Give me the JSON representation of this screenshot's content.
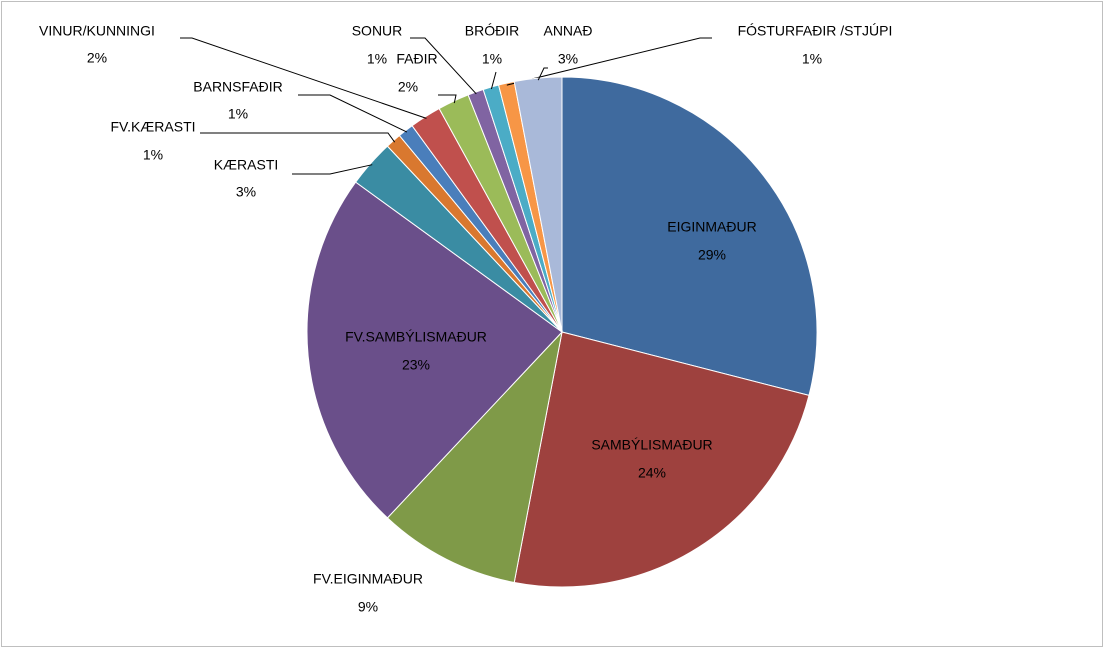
{
  "chart_data": {
    "type": "pie",
    "categories": [
      "EIGINMAÐUR",
      "SAMBÝLISMAÐUR",
      "FV.EIGINMAÐUR",
      "FV.SAMBÝLISMAÐUR",
      "KÆRASTI",
      "FV.KÆRASTI",
      "BARNSFAÐIR",
      "VINUR/KUNNINGI",
      "FAÐIR",
      "SONUR",
      "BRÓÐIR",
      "FÓSTURFAÐIR /STJÚPI",
      "ANNAÐ"
    ],
    "values": [
      29,
      24,
      9,
      23,
      3,
      1,
      1,
      2,
      2,
      1,
      1,
      1,
      3
    ],
    "value_labels": [
      "29%",
      "24%",
      "9%",
      "23%",
      "3%",
      "1%",
      "1%",
      "2%",
      "2%",
      "1%",
      "1%",
      "1%",
      "3%"
    ],
    "colors": [
      "#3f6a9e",
      "#9e413e",
      "#7f9a48",
      "#6a4f8a",
      "#3a8ca3",
      "#d9782f",
      "#4a7ebb",
      "#c0504d",
      "#9bbb59",
      "#8064a2",
      "#4bacc6",
      "#f79646",
      "#a9b9d9"
    ]
  }
}
